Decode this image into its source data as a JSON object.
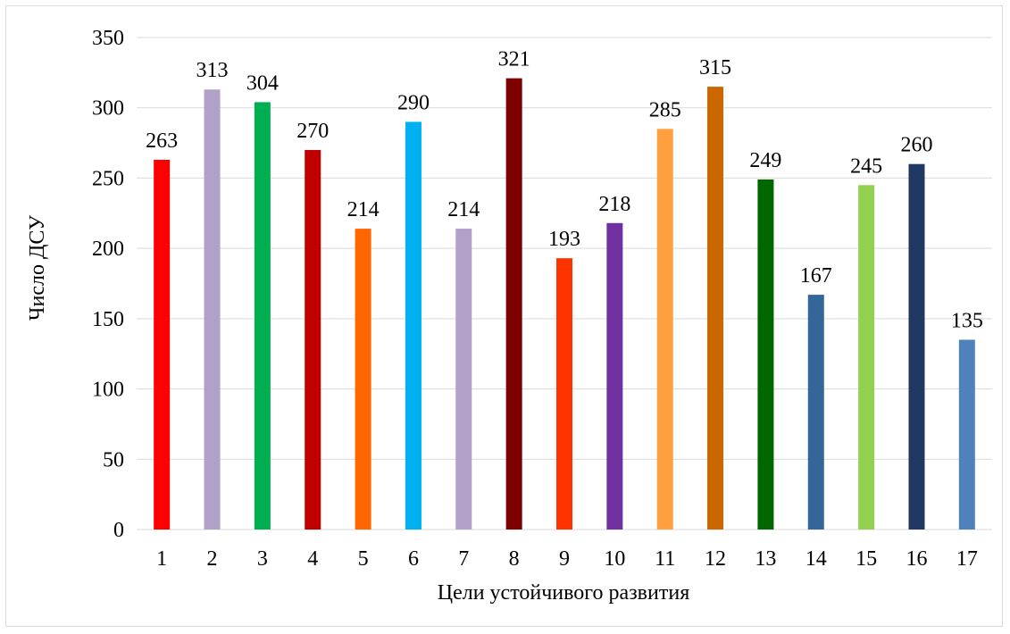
{
  "chart_data": {
    "type": "bar",
    "title": "",
    "xlabel": "Цели устойчивого развития",
    "ylabel": "Число ДСУ",
    "ylim": [
      0,
      350
    ],
    "yticks": [
      "0",
      "50",
      "100",
      "150",
      "200",
      "250",
      "300",
      "350"
    ],
    "grid": true,
    "legend": "none",
    "categories": [
      "1",
      "2",
      "3",
      "4",
      "5",
      "6",
      "7",
      "8",
      "9",
      "10",
      "11",
      "12",
      "13",
      "14",
      "15",
      "16",
      "17"
    ],
    "values": [
      263,
      313,
      304,
      270,
      214,
      290,
      214,
      321,
      193,
      218,
      285,
      315,
      249,
      167,
      245,
      260,
      135
    ],
    "value_labels": [
      "263",
      "313",
      "304",
      "270",
      "214",
      "290",
      "214",
      "321",
      "193",
      "218",
      "285",
      "315",
      "249",
      "167",
      "245",
      "260",
      "135"
    ],
    "colors": [
      "#ff0000",
      "#b1a0c7",
      "#00b050",
      "#c00000",
      "#ff6600",
      "#00b0f0",
      "#b1a0c7",
      "#7f0000",
      "#ff3300",
      "#7030a0",
      "#ffa040",
      "#cc6600",
      "#006600",
      "#336699",
      "#92d050",
      "#203864",
      "#4f81bd"
    ]
  }
}
